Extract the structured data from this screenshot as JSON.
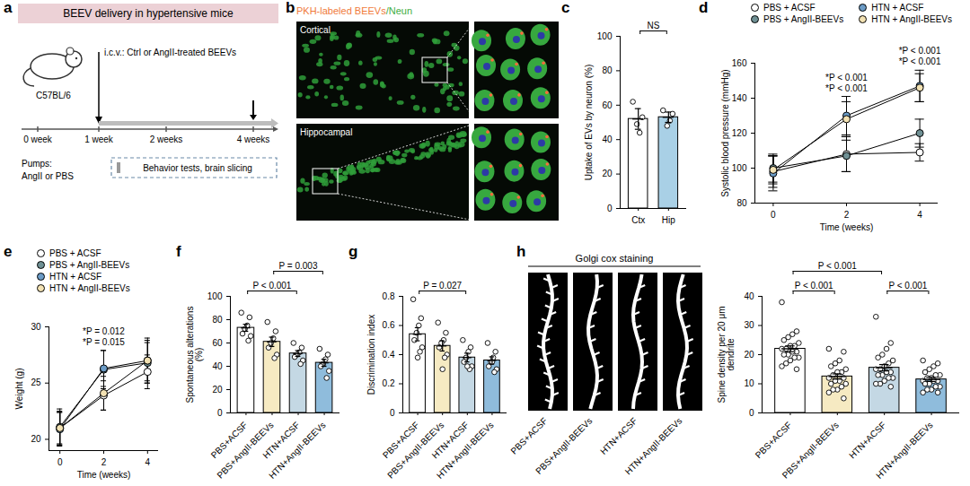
{
  "panels": [
    {
      "panel_label": "a",
      "type": "diagram",
      "title": "BEEV delivery in hypertensive mice",
      "strain": "C57BL/6",
      "injection": "i.c.v.: Ctrl or AngII-treated BEEVs",
      "timeline": [
        "0 week",
        "1 week",
        "2 weeks",
        "4 weeks"
      ],
      "pumps": [
        "Pumps:",
        "AngII or PBS"
      ],
      "box": "Behavior tests, brain slicing"
    },
    {
      "panel_label": "b",
      "type": "image",
      "title": [
        {
          "text": "PKH-labeled BEEVs",
          "color": "#f07a3a"
        },
        {
          "text": "/Neun",
          "color": "#3fae3f"
        }
      ],
      "regions": [
        "Cortical",
        "Hippocampal"
      ]
    },
    {
      "panel_label": "h",
      "type": "image",
      "title": "Golgi cox staining",
      "labels": [
        "PBS+ACSF",
        "PBS+AngII-BEEVs",
        "HTN+ACSF",
        "HTN+AngII-BEEVs"
      ]
    }
  ],
  "chart_data": [
    {
      "panel_label": "c",
      "type": "bar",
      "categories": [
        "Ctx",
        "Hip"
      ],
      "values": [
        52,
        53
      ],
      "errors": [
        6,
        3
      ],
      "points": [
        [
          62,
          53,
          44,
          49
        ],
        [
          57,
          55,
          51,
          48
        ]
      ],
      "colors": [
        "#ffffff",
        "#a9d0e6"
      ],
      "ylabel": "Uptake of EVs by neuron (%)",
      "ylim": [
        0,
        100
      ],
      "yticks": [
        0,
        20,
        40,
        60,
        80,
        100
      ],
      "annotations": [
        {
          "text": "NS",
          "between": [
            "Ctx",
            "Hip"
          ]
        }
      ]
    },
    {
      "panel_label": "d",
      "type": "line",
      "xlabel": "Time (weeks)",
      "ylabel": "Systolic blood pressure (mmHg)",
      "x": [
        0,
        2,
        4
      ],
      "xlim": [
        -0.5,
        4.5
      ],
      "xticks": [
        0,
        2,
        4
      ],
      "ylim": [
        80,
        160
      ],
      "yticks": [
        80,
        100,
        120,
        140,
        160
      ],
      "legend": "top",
      "marker": "circle",
      "series": [
        {
          "name": "PBS + ACSF",
          "color": "#ffffff",
          "values": [
            98,
            108,
            109
          ],
          "errors": [
            9,
            10,
            5
          ]
        },
        {
          "name": "PBS + AngII-BEEVs",
          "color": "#6f9094",
          "values": [
            100,
            107,
            120
          ],
          "errors": [
            8,
            9,
            8
          ]
        },
        {
          "name": "HTN + ACSF",
          "color": "#6b9bc6",
          "values": [
            97,
            130,
            147
          ],
          "errors": [
            10,
            11,
            9
          ]
        },
        {
          "name": "HTN + AngII-BEEVs",
          "color": "#f3e2b3",
          "values": [
            99,
            128,
            146
          ],
          "errors": [
            8,
            10,
            8
          ]
        }
      ],
      "annotations": [
        {
          "x": 2,
          "lines": [
            "*P < 0.001",
            "*P < 0.001"
          ]
        },
        {
          "x": 4,
          "lines": [
            "*P < 0.001",
            "*P < 0.001"
          ]
        }
      ]
    },
    {
      "panel_label": "e",
      "type": "line",
      "xlabel": "Time (weeks)",
      "ylabel": "Weight (g)",
      "x": [
        0,
        2,
        4
      ],
      "xlim": [
        -0.5,
        4.5
      ],
      "xticks": [
        0,
        2,
        4
      ],
      "ylim": [
        19,
        30
      ],
      "yticks": [
        20,
        25,
        30
      ],
      "legend": "top",
      "marker": "circle",
      "series": [
        {
          "name": "PBS + ACSF",
          "color": "#ffffff",
          "values": [
            21,
            23.9,
            26
          ],
          "errors": [
            1.5,
            1.3,
            1.5
          ]
        },
        {
          "name": "PBS + AngII-BEEVs",
          "color": "#6f9094",
          "values": [
            21.1,
            26.2,
            26.8
          ],
          "errors": [
            1.6,
            1.7,
            1.8
          ]
        },
        {
          "name": "HTN + ACSF",
          "color": "#6b9bc6",
          "values": [
            20.9,
            26.3,
            27
          ],
          "errors": [
            1.5,
            1.6,
            2
          ]
        },
        {
          "name": "HTN + AngII-BEEVs",
          "color": "#f3e2b3",
          "values": [
            21,
            24.1,
            27
          ],
          "errors": [
            1.4,
            1.5,
            1.8
          ]
        }
      ],
      "annotations": [
        {
          "x": 2,
          "lines": [
            "*P = 0.012",
            "*P = 0.015"
          ]
        }
      ]
    },
    {
      "panel_label": "f",
      "type": "bar",
      "categories": [
        "PBS+ACSF",
        "PBS+AngII-BEEVs",
        "HTN+ACSF",
        "HTN+AngII-BEEVs"
      ],
      "values": [
        73,
        61,
        51,
        43
      ],
      "errors": [
        3,
        4,
        2.5,
        3
      ],
      "points": [
        [
          86,
          82,
          75,
          72,
          68,
          66,
          62
        ],
        [
          78,
          70,
          64,
          60,
          56,
          50,
          47
        ],
        [
          60,
          56,
          52,
          50,
          48,
          45,
          42
        ],
        [
          55,
          50,
          46,
          42,
          40,
          36,
          30
        ]
      ],
      "colors": [
        "#ffffff",
        "#f6eac2",
        "#c4d8e4",
        "#8fbcdc"
      ],
      "ylabel": "Spontaneous alterations (%)",
      "ylim": [
        0,
        100
      ],
      "yticks": [
        0,
        20,
        40,
        60,
        80,
        100
      ],
      "annotations": [
        {
          "text": "P < 0.001",
          "between": [
            "PBS+ACSF",
            "HTN+ACSF"
          ]
        },
        {
          "text": "P = 0.003",
          "between": [
            "PBS+AngII-BEEVs",
            "HTN+AngII-BEEVs"
          ]
        }
      ]
    },
    {
      "panel_label": "g",
      "type": "bar",
      "categories": [
        "PBS+ACSF",
        "PBS+AngII-BEEVs",
        "HTN+ACSF",
        "HTN+AngII-BEEVs"
      ],
      "values": [
        0.54,
        0.46,
        0.38,
        0.36
      ],
      "errors": [
        0.045,
        0.035,
        0.03,
        0.025
      ],
      "points": [
        [
          0.78,
          0.65,
          0.6,
          0.55,
          0.5,
          0.45,
          0.42,
          0.38
        ],
        [
          0.62,
          0.55,
          0.5,
          0.48,
          0.45,
          0.4,
          0.38,
          0.3
        ],
        [
          0.5,
          0.45,
          0.42,
          0.38,
          0.35,
          0.32,
          0.3,
          0.32
        ],
        [
          0.48,
          0.42,
          0.38,
          0.35,
          0.32,
          0.3,
          0.28,
          0.35
        ]
      ],
      "colors": [
        "#ffffff",
        "#f6eac2",
        "#c4d8e4",
        "#8fbcdc"
      ],
      "ylabel": "Discrimination index",
      "ylim": [
        0,
        0.8
      ],
      "yticks": [
        0,
        0.2,
        0.4,
        0.6,
        0.8
      ],
      "annotations": [
        {
          "text": "P = 0.027",
          "between": [
            "PBS+ACSF",
            "HTN+ACSF"
          ]
        }
      ]
    },
    {
      "type": "bar",
      "categories": [
        "PBS+ACSF",
        "PBS+AngII-BEEVs",
        "HTN+ACSF",
        "HTN+AngII-BEEVs"
      ],
      "values": [
        22,
        12.5,
        15.5,
        11.5
      ],
      "errors": [
        1,
        0.9,
        1.1,
        0.7
      ],
      "points": [
        [
          38,
          28,
          27,
          26,
          25,
          24,
          23,
          23,
          22,
          22,
          21,
          21,
          20,
          20,
          19,
          19,
          18,
          17,
          16,
          15
        ],
        [
          22,
          21,
          18,
          17,
          16,
          15,
          14,
          14,
          13,
          12,
          12,
          11,
          11,
          10,
          10,
          9,
          8,
          8,
          7,
          5
        ],
        [
          33,
          24,
          22,
          20,
          19,
          18,
          17,
          16,
          15,
          15,
          14,
          14,
          13,
          13,
          12,
          12,
          11,
          10,
          10,
          9
        ],
        [
          18,
          17,
          16,
          15,
          14,
          13,
          13,
          12,
          12,
          11,
          11,
          11,
          10,
          10,
          9,
          9,
          8,
          8,
          7,
          7
        ]
      ],
      "colors": [
        "#ffffff",
        "#f6eac2",
        "#c4d8e4",
        "#8fbcdc"
      ],
      "ylabel": "Spine density per 20 μm dendrite",
      "ylim": [
        0,
        40
      ],
      "yticks": [
        0,
        10,
        20,
        30,
        40
      ],
      "annotations": [
        {
          "text": "P < 0.001",
          "between": [
            "PBS+ACSF",
            "PBS+AngII-BEEVs"
          ]
        },
        {
          "text": "P < 0.001",
          "between": [
            "PBS+ACSF",
            "HTN+ACSF"
          ]
        },
        {
          "text": "P < 0.001",
          "between": [
            "HTN+ACSF",
            "HTN+AngII-BEEVs"
          ]
        }
      ]
    }
  ]
}
